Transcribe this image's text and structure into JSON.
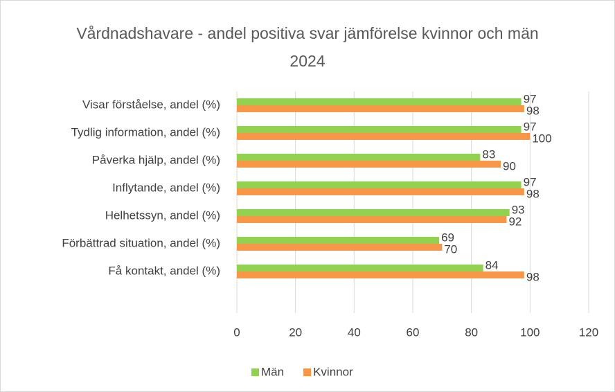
{
  "chart_data": {
    "type": "hbar",
    "title": "Vårdnadshavare - andel positiva svar jämförelse kvinnor och män 2024",
    "categories": [
      "Visar förståelse, andel (%)",
      "Tydlig information, andel (%)",
      "Påverka hjälp, andel (%)",
      "Inflytande, andel (%)",
      "Helhetssyn, andel (%)",
      "Förbättrad situation, andel (%)",
      "Få kontakt, andel (%)"
    ],
    "series": [
      {
        "name": "Män",
        "color": "#92d050",
        "values": [
          97,
          97,
          83,
          97,
          93,
          69,
          84
        ]
      },
      {
        "name": "Kvinnor",
        "color": "#f79646",
        "values": [
          98,
          100,
          90,
          98,
          92,
          70,
          98
        ]
      }
    ],
    "xlim": [
      0,
      120
    ],
    "xticks": [
      0,
      20,
      40,
      60,
      80,
      100,
      120
    ],
    "grid": true,
    "legend": "bottom"
  }
}
